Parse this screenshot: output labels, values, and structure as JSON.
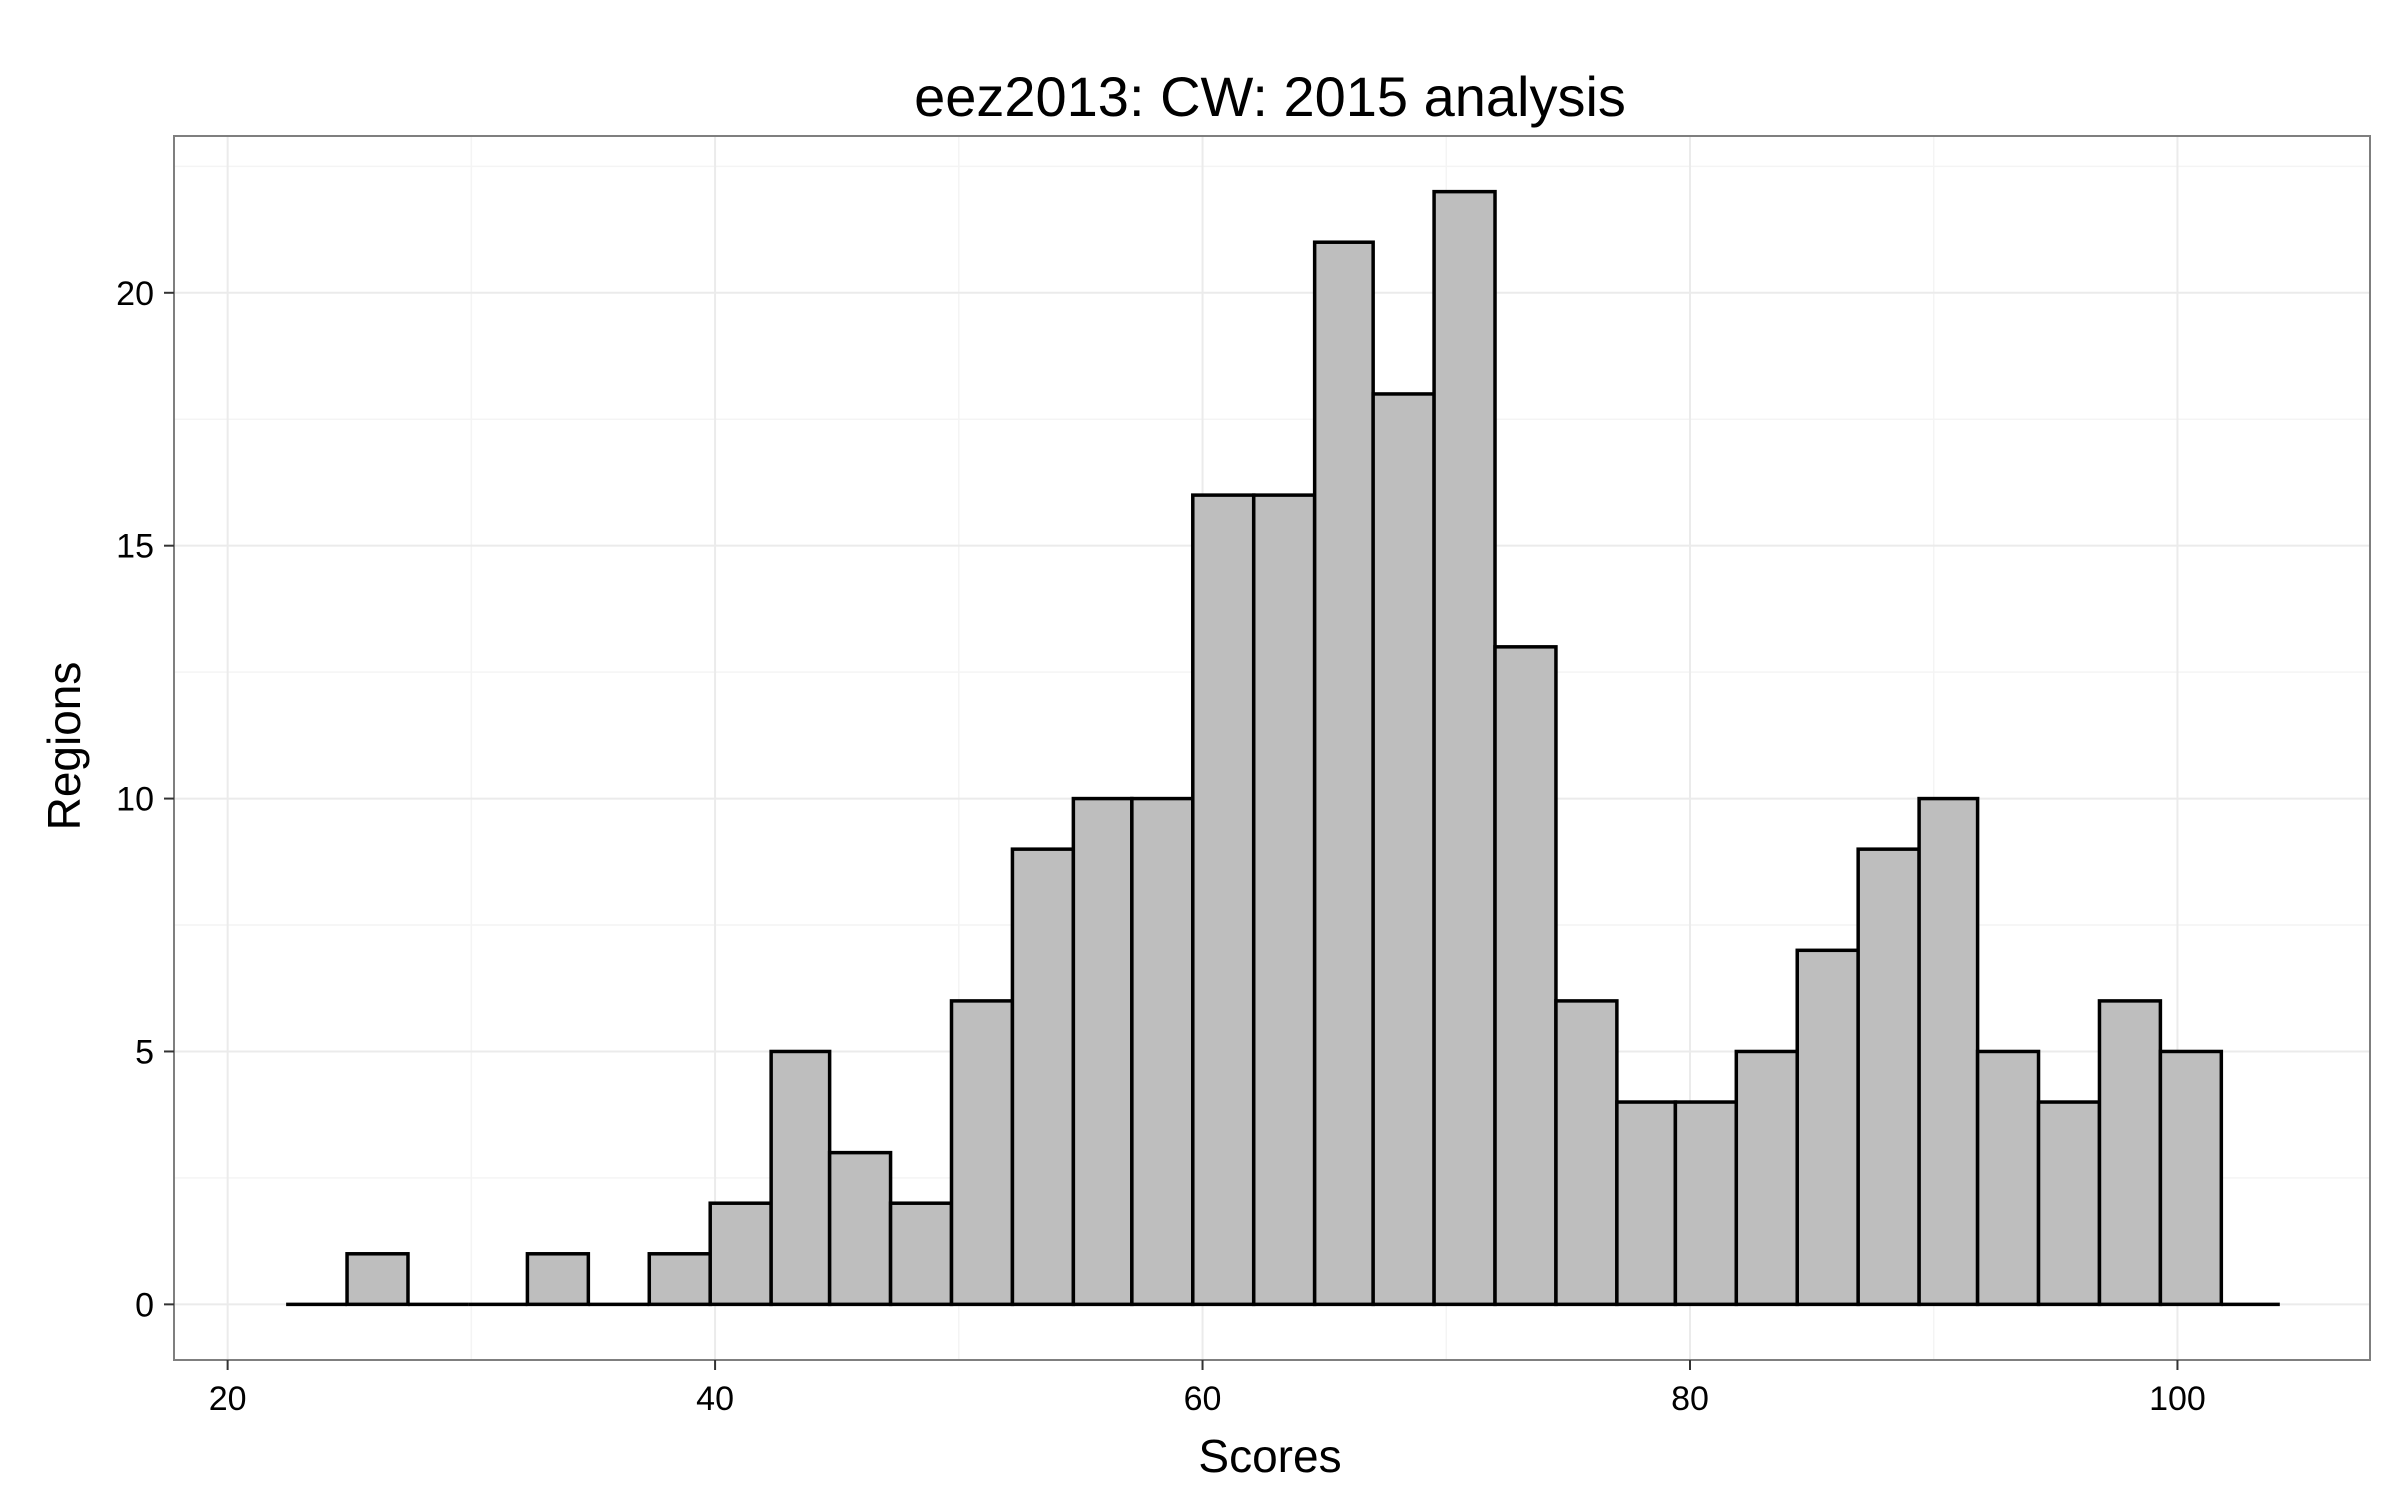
{
  "chart_data": {
    "type": "bar",
    "title": "eez2013: CW: 2015 analysis",
    "xlabel": "Scores",
    "ylabel": "Regions",
    "xlim": [
      17.8,
      107.9
    ],
    "ylim": [
      -1.1,
      23.1
    ],
    "x_ticks": [
      20,
      40,
      60,
      80,
      100
    ],
    "x_tick_labels": [
      "20",
      "40",
      "60",
      "80",
      "100"
    ],
    "y_ticks": [
      0,
      5,
      10,
      15,
      20
    ],
    "y_tick_labels": [
      "0",
      "5",
      "10",
      "15",
      "20"
    ],
    "grid": true,
    "theme": "black-and-white",
    "bar_fill": "#bebebe",
    "bar_outline": "#000000",
    "panel_border": "#7f7f7f",
    "grid_color": "#ebebeb",
    "bins": [
      {
        "x_start": 22.4,
        "x_end": 24.9,
        "count": 0
      },
      {
        "x_start": 24.9,
        "x_end": 27.4,
        "count": 1
      },
      {
        "x_start": 27.4,
        "x_end": 29.9,
        "count": 0
      },
      {
        "x_start": 29.9,
        "x_end": 32.3,
        "count": 0
      },
      {
        "x_start": 32.3,
        "x_end": 34.8,
        "count": 1
      },
      {
        "x_start": 34.8,
        "x_end": 37.3,
        "count": 0
      },
      {
        "x_start": 37.3,
        "x_end": 39.8,
        "count": 1
      },
      {
        "x_start": 39.8,
        "x_end": 42.3,
        "count": 2
      },
      {
        "x_start": 42.3,
        "x_end": 44.7,
        "count": 5
      },
      {
        "x_start": 44.7,
        "x_end": 47.2,
        "count": 3
      },
      {
        "x_start": 47.2,
        "x_end": 49.7,
        "count": 2
      },
      {
        "x_start": 49.7,
        "x_end": 52.2,
        "count": 6
      },
      {
        "x_start": 52.2,
        "x_end": 54.7,
        "count": 9
      },
      {
        "x_start": 54.7,
        "x_end": 57.1,
        "count": 10
      },
      {
        "x_start": 57.1,
        "x_end": 59.6,
        "count": 10
      },
      {
        "x_start": 59.6,
        "x_end": 62.1,
        "count": 16
      },
      {
        "x_start": 62.1,
        "x_end": 64.6,
        "count": 16
      },
      {
        "x_start": 64.6,
        "x_end": 67.0,
        "count": 21
      },
      {
        "x_start": 67.0,
        "x_end": 69.5,
        "count": 18
      },
      {
        "x_start": 69.5,
        "x_end": 72.0,
        "count": 22
      },
      {
        "x_start": 72.0,
        "x_end": 74.5,
        "count": 13
      },
      {
        "x_start": 74.5,
        "x_end": 77.0,
        "count": 6
      },
      {
        "x_start": 77.0,
        "x_end": 79.4,
        "count": 4
      },
      {
        "x_start": 79.4,
        "x_end": 81.9,
        "count": 4
      },
      {
        "x_start": 81.9,
        "x_end": 84.4,
        "count": 5
      },
      {
        "x_start": 84.4,
        "x_end": 86.9,
        "count": 7
      },
      {
        "x_start": 86.9,
        "x_end": 89.4,
        "count": 9
      },
      {
        "x_start": 89.4,
        "x_end": 91.8,
        "count": 10
      },
      {
        "x_start": 91.8,
        "x_end": 94.3,
        "count": 5
      },
      {
        "x_start": 94.3,
        "x_end": 96.8,
        "count": 4
      },
      {
        "x_start": 96.8,
        "x_end": 99.3,
        "count": 6
      },
      {
        "x_start": 99.3,
        "x_end": 101.8,
        "count": 5
      },
      {
        "x_start": 101.8,
        "x_end": 104.2,
        "count": 0
      }
    ]
  }
}
